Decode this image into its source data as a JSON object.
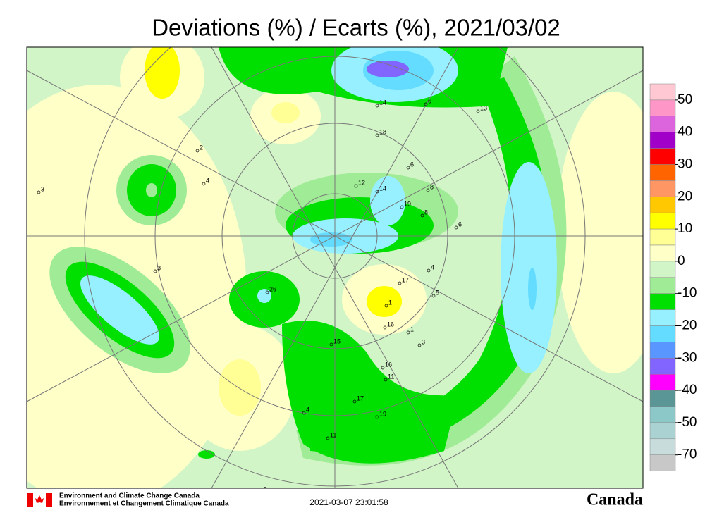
{
  "title": "Deviations (%) / Ecarts (%), 2021/03/02",
  "legend": {
    "ticks": [
      50,
      40,
      30,
      20,
      10,
      0,
      -10,
      -20,
      -30,
      -40,
      -50,
      -70
    ],
    "colors": [
      "#ffc8d2",
      "#ff96c8",
      "#dc64dc",
      "#a000c8",
      "#ff0000",
      "#ff6400",
      "#ff9664",
      "#ffc800",
      "#ffff00",
      "#ffff96",
      "#ffffc8",
      "#d2f5c8",
      "#a0eb96",
      "#00e000",
      "#96f0ff",
      "#64dcff",
      "#5a96ff",
      "#8264ff",
      "#ff00ff",
      "#5a9696",
      "#8cc8c8",
      "#aad2d2",
      "#c8dcdc",
      "#c8c8c8"
    ]
  },
  "stations": [
    "14",
    "6",
    "13",
    "18",
    "6",
    "2",
    "4",
    "3",
    "12",
    "14",
    "19",
    "8",
    "8",
    "6",
    "3",
    "26",
    "4",
    "17",
    "5",
    "1",
    "16",
    "1",
    "3",
    "15",
    "16",
    "11",
    "4",
    "17",
    "19",
    "11",
    "9"
  ],
  "footer": {
    "agency_en": "Environment and Climate Change Canada",
    "agency_fr": "Environnement et Changement Climatique Canada",
    "timestamp": "2021-03-07 23:01:58",
    "wordmark": "Canada"
  }
}
